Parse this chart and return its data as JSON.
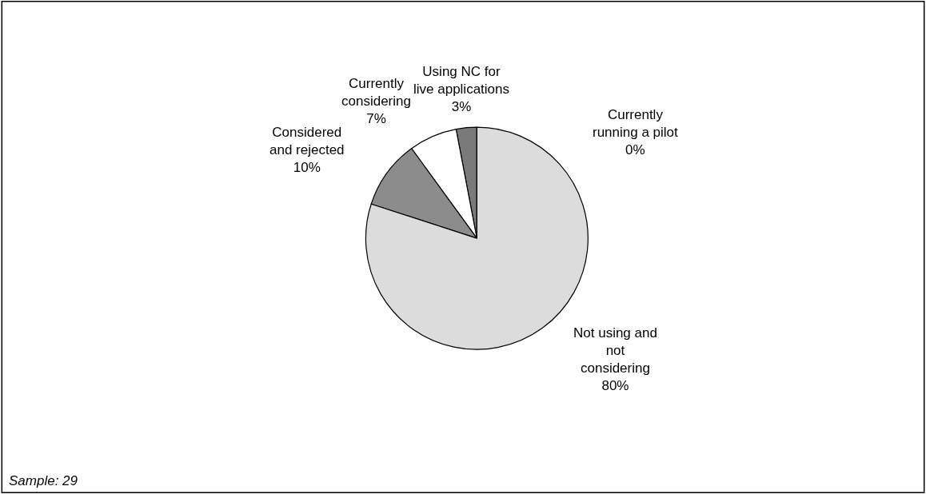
{
  "chart_data": {
    "type": "pie",
    "categories": [
      "Using NC for\nlive applications",
      "Currently\nconsidering",
      "Considered\nand rejected",
      "Not using and\nnot\nconsidering",
      "Currently\nrunning a pilot"
    ],
    "values": [
      3,
      7,
      10,
      80,
      0
    ],
    "value_labels": [
      "3%",
      "7%",
      "10%",
      "80%",
      "0%"
    ],
    "colors": [
      "#7a7a7a",
      "#ffffff",
      "#8c8c8c",
      "#dcdcdc",
      "#ffffff"
    ],
    "legend": false,
    "annotations": [
      "Sample: 29"
    ]
  }
}
